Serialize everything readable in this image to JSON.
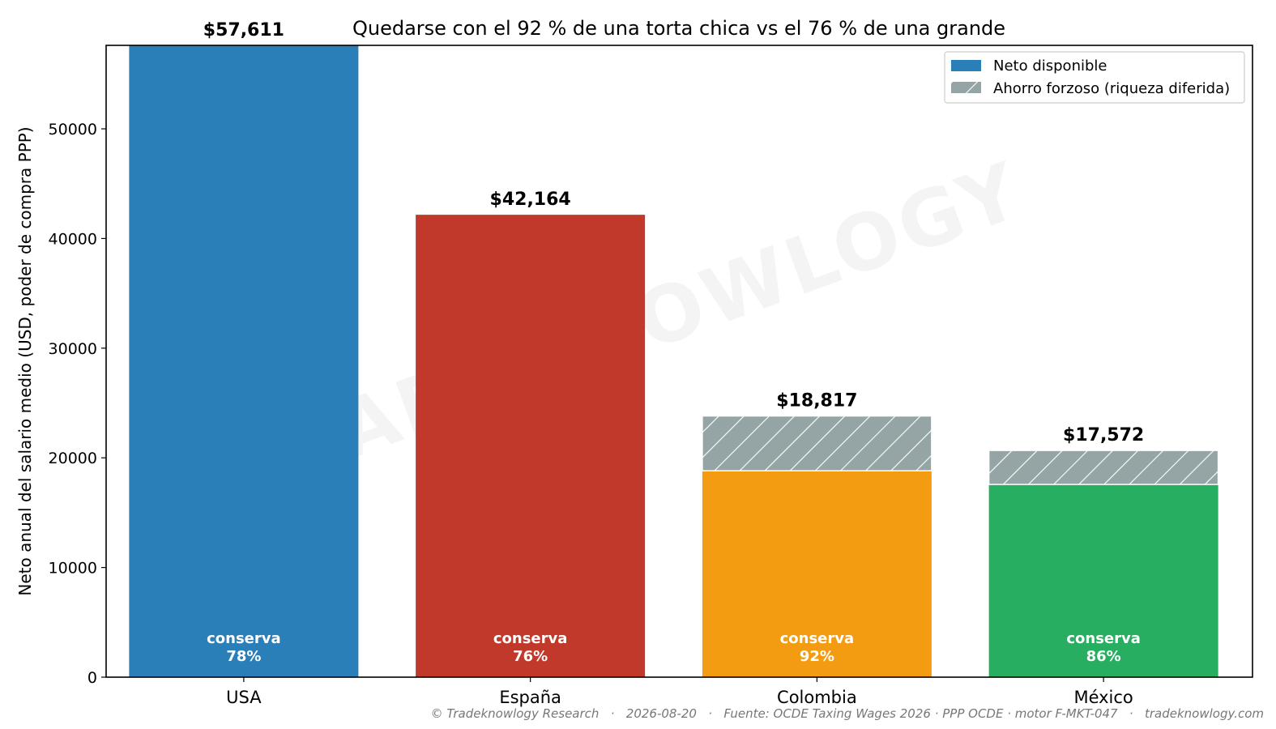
{
  "chart_data": {
    "type": "bar",
    "title": "Quedarse con el 92 % de una torta chica vs el 76 % de una grande",
    "xlabel": "",
    "ylabel": "Neto anual del salario medio (USD, poder de compra PPP)",
    "ylim": [
      0,
      57611
    ],
    "yticks": [
      0,
      10000,
      20000,
      30000,
      40000,
      50000
    ],
    "categories": [
      "USA",
      "España",
      "Colombia",
      "México"
    ],
    "series": [
      {
        "name": "Neto disponible",
        "values": [
          57611,
          42164,
          18817,
          17572
        ],
        "colors": [
          "#2b7fb8",
          "#c0392b",
          "#f39c12",
          "#27ae60"
        ]
      },
      {
        "name": "Ahorro forzoso (riqueza diferida)",
        "values": [
          0,
          0,
          5000,
          3100
        ],
        "color": "#95a5a6",
        "hatch": "diagonal"
      }
    ],
    "value_labels": [
      "$57,611",
      "$42,164",
      "$18,817",
      "$17,572"
    ],
    "inner_labels": [
      [
        "conserva",
        "78%"
      ],
      [
        "conserva",
        "76%"
      ],
      [
        "conserva",
        "92%"
      ],
      [
        "conserva",
        "86%"
      ]
    ],
    "legend": {
      "placement": "top-right",
      "entries": [
        "Neto disponible",
        "Ahorro forzoso (riqueza diferida)"
      ]
    },
    "grid": false
  },
  "watermark": "TRADEKNOWLOGY",
  "footer": "© Tradeknowlogy Research   ·   2026-08-20   ·   Fuente: OCDE Taxing Wages 2026 · PPP OCDE · motor F-MKT-047   ·   tradeknowlogy.com"
}
